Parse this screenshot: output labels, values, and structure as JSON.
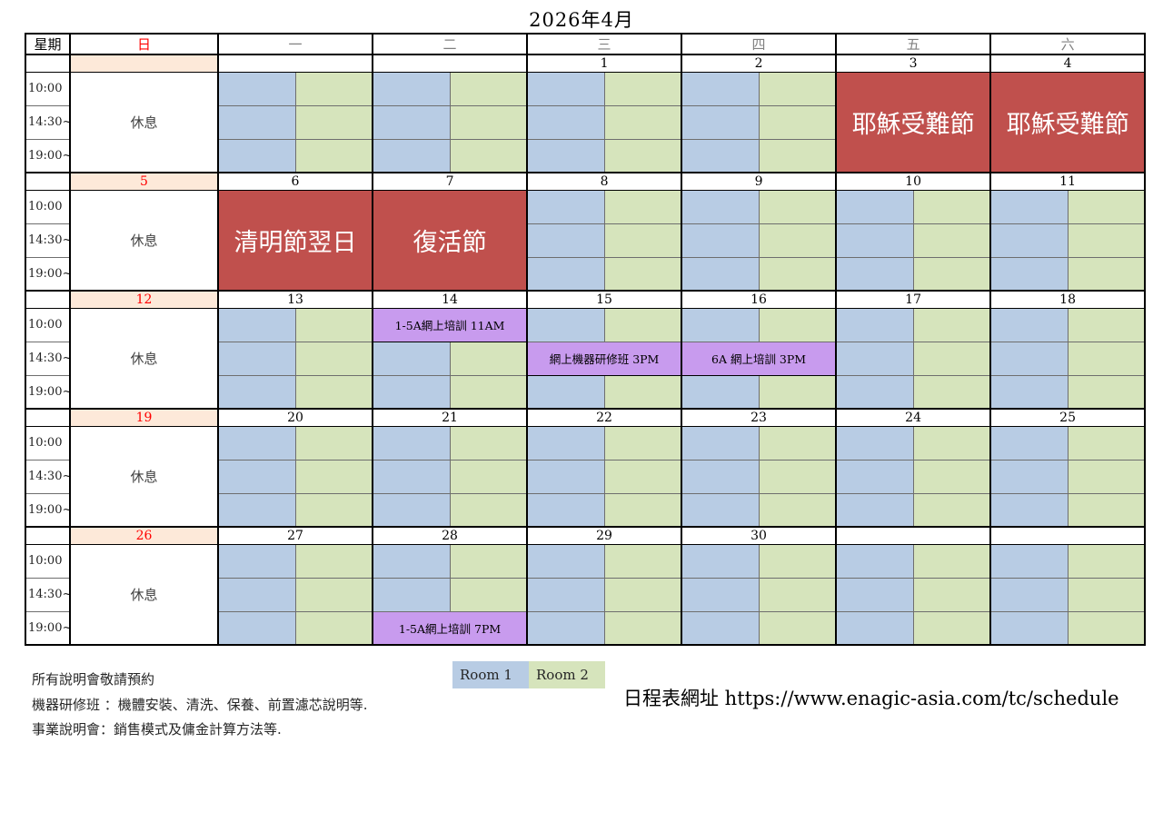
{
  "title": "2026年4月",
  "colors": {
    "room1_blue": "#B8CCE4",
    "room2_green": "#D6E4BC",
    "holiday_red": "#C0504D",
    "sunday_peach": "#FDE9D9",
    "event_purple": "#C89BEE",
    "sunday_red_text": "#FF0000",
    "weekday_gray_text": "#808080"
  },
  "header": {
    "week_label": "星期",
    "days": [
      "日",
      "一",
      "二",
      "三",
      "四",
      "五",
      "六"
    ]
  },
  "time_labels": [
    "10:00",
    "14:30~",
    "19:00~"
  ],
  "sunday_rest_label": "休息",
  "weeks": [
    {
      "sunday_date": "",
      "days": [
        {
          "date": "",
          "type": "rooms"
        },
        {
          "date": "",
          "type": "rooms"
        },
        {
          "date": "1",
          "type": "rooms"
        },
        {
          "date": "2",
          "type": "rooms"
        },
        {
          "date": "3",
          "type": "holiday",
          "holiday": "耶穌受難節"
        },
        {
          "date": "4",
          "type": "holiday",
          "holiday": "耶穌受難節"
        }
      ]
    },
    {
      "sunday_date": "5",
      "days": [
        {
          "date": "6",
          "type": "holiday",
          "holiday": "清明節翌日"
        },
        {
          "date": "7",
          "type": "holiday",
          "holiday": "復活節"
        },
        {
          "date": "8",
          "type": "rooms"
        },
        {
          "date": "9",
          "type": "rooms"
        },
        {
          "date": "10",
          "type": "rooms"
        },
        {
          "date": "11",
          "type": "rooms"
        }
      ]
    },
    {
      "sunday_date": "12",
      "days": [
        {
          "date": "13",
          "type": "rooms"
        },
        {
          "date": "14",
          "type": "rooms",
          "events": [
            {
              "slot": 0,
              "label": "1-5A網上培訓  11AM"
            }
          ]
        },
        {
          "date": "15",
          "type": "rooms",
          "events": [
            {
              "slot": 1,
              "label": "網上機器研修班  3PM"
            }
          ]
        },
        {
          "date": "16",
          "type": "rooms",
          "events": [
            {
              "slot": 1,
              "label": "6A 網上培訓 3PM"
            }
          ]
        },
        {
          "date": "17",
          "type": "rooms"
        },
        {
          "date": "18",
          "type": "rooms"
        }
      ]
    },
    {
      "sunday_date": "19",
      "days": [
        {
          "date": "20",
          "type": "rooms"
        },
        {
          "date": "21",
          "type": "rooms"
        },
        {
          "date": "22",
          "type": "rooms"
        },
        {
          "date": "23",
          "type": "rooms"
        },
        {
          "date": "24",
          "type": "rooms"
        },
        {
          "date": "25",
          "type": "rooms"
        }
      ]
    },
    {
      "sunday_date": "26",
      "days": [
        {
          "date": "27",
          "type": "rooms"
        },
        {
          "date": "28",
          "type": "rooms",
          "events": [
            {
              "slot": 2,
              "label": "1-5A網上培訓  7PM"
            }
          ]
        },
        {
          "date": "29",
          "type": "rooms"
        },
        {
          "date": "30",
          "type": "rooms"
        },
        {
          "date": "",
          "type": "rooms"
        },
        {
          "date": "",
          "type": "rooms"
        }
      ]
    }
  ],
  "legend": {
    "room1": "Room 1",
    "room2": "Room 2"
  },
  "notes": {
    "booking": "所有說明會敬請預約",
    "machine_class": "機器研修班 ：機體安裝、清洗、保養、前置濾芯說明等.",
    "business_session": "事業說明會：銷售模式及傭金計算方法等."
  },
  "schedule_url": "日程表網址 https://www.enagic-asia.com/tc/schedule"
}
